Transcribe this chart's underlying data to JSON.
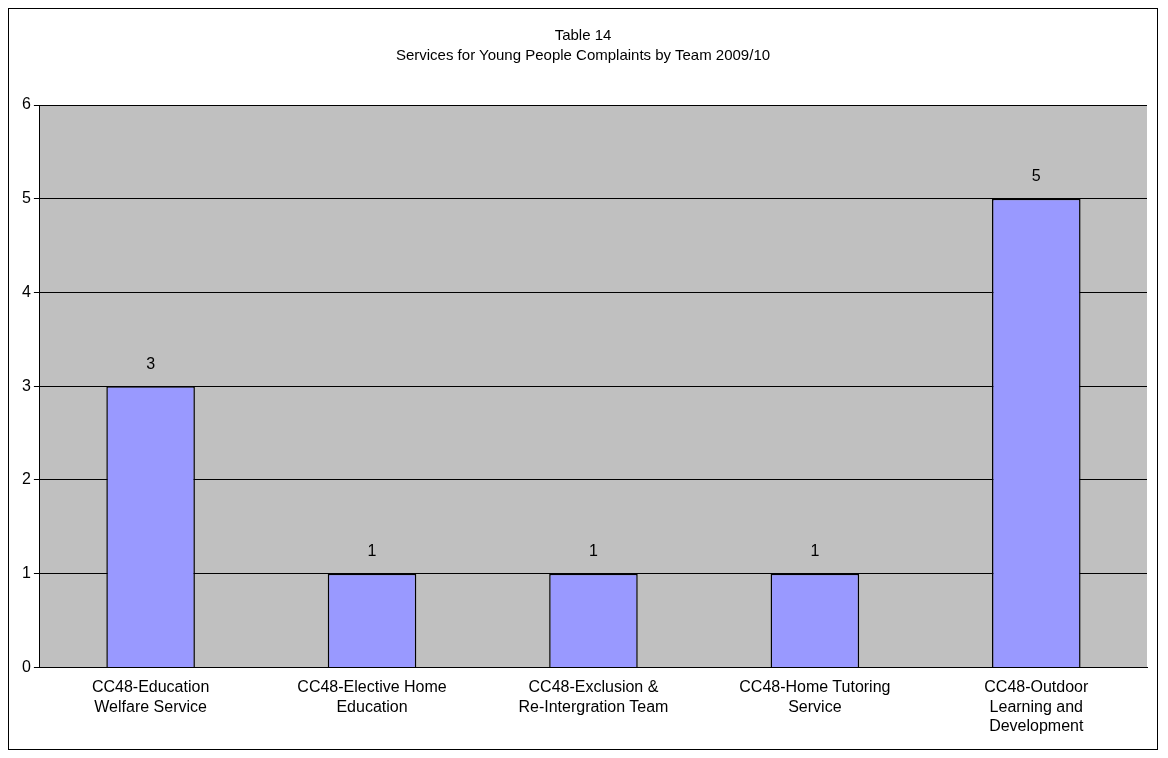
{
  "chart_data": {
    "type": "bar",
    "title": "Table 14",
    "subtitle": "Services for Young People Complaints by Team 2009/10",
    "categories": [
      "CC48-Education Welfare Service",
      "CC48-Elective Home Education",
      "CC48-Exclusion & Re-Intergration Team",
      "CC48-Home Tutoring Service",
      "CC48-Outdoor Learning and Development"
    ],
    "values": [
      3,
      1,
      1,
      1,
      5
    ],
    "color": "#9999ff",
    "ylim": [
      0,
      6
    ],
    "yticks": [
      0,
      1,
      2,
      3,
      4,
      5,
      6
    ],
    "grid": "y",
    "legend": false,
    "data_labels": true
  }
}
